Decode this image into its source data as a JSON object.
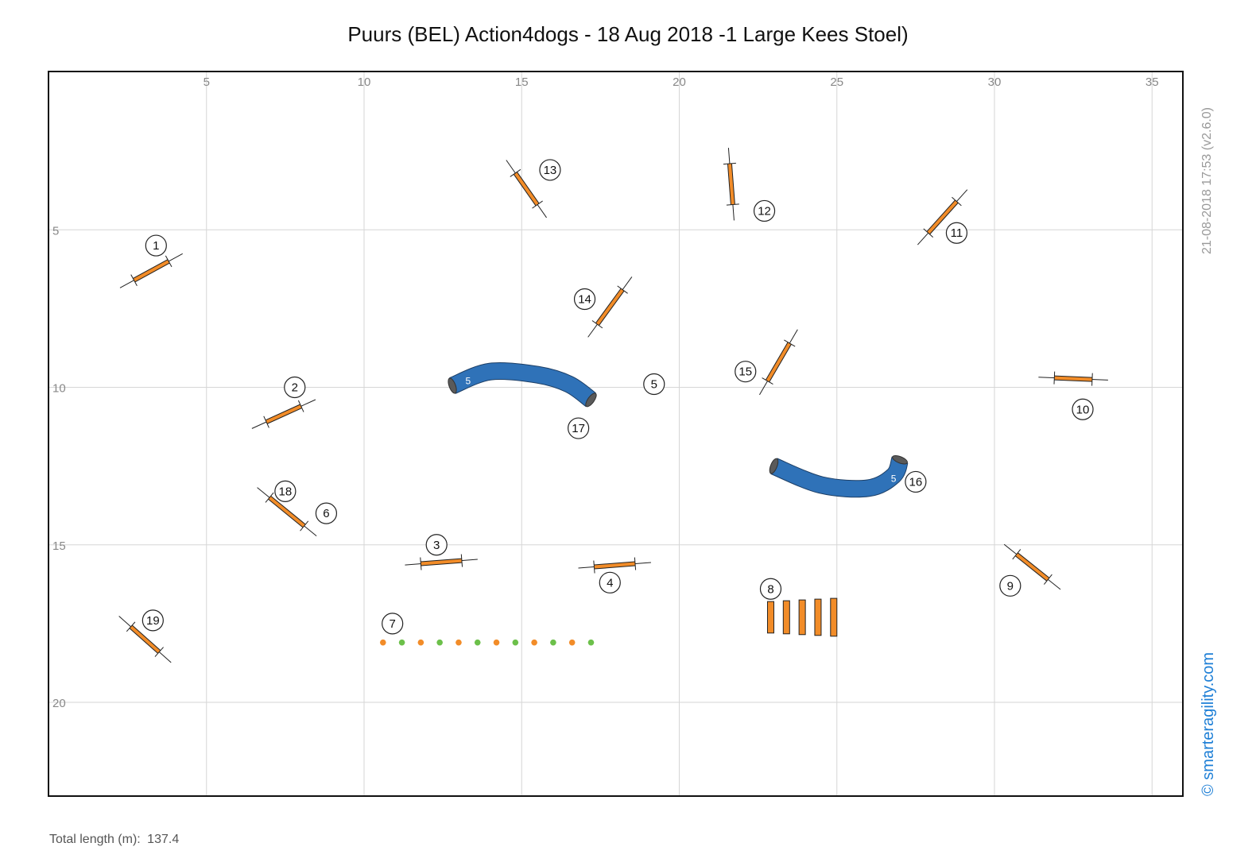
{
  "title": "Puurs (BEL) Action4dogs - 18 Aug 2018 -1 Large Kees Stoel)",
  "footer": {
    "label": "Total length (m):",
    "value": "137.4"
  },
  "timestamp": "21-08-2018 17:53   (v2.6.0)",
  "copyright": "© smarteragility.com",
  "field": {
    "width_m": 36,
    "height_m": 23
  },
  "axes": {
    "x_ticks": [
      "5",
      "10",
      "15",
      "20",
      "25",
      "30",
      "35"
    ],
    "y_ticks": [
      "5",
      "10",
      "15",
      "20"
    ]
  },
  "colors": {
    "jump_bar": "#f28c28",
    "tunnel": "#2f72b8",
    "tunnel_end": "#5a5a5a",
    "weave_orange": "#f28c28",
    "weave_green": "#6cc04a",
    "grid": "#d6d6d6",
    "copyright": "#1e7fd6"
  },
  "jumps": [
    {
      "x1": 2.7,
      "y1": 6.6,
      "x2": 3.8,
      "y2": 6.0
    },
    {
      "x1": 6.9,
      "y1": 11.1,
      "x2": 8.0,
      "y2": 10.6
    },
    {
      "x1": 11.8,
      "y1": 15.6,
      "x2": 13.1,
      "y2": 15.5
    },
    {
      "x1": 17.3,
      "y1": 15.7,
      "x2": 18.6,
      "y2": 15.6
    },
    {
      "x1": 7.0,
      "y1": 13.5,
      "x2": 8.1,
      "y2": 14.4
    },
    {
      "x1": 30.7,
      "y1": 15.3,
      "x2": 31.7,
      "y2": 16.1
    },
    {
      "x1": 31.9,
      "y1": 9.7,
      "x2": 33.1,
      "y2": 9.75
    },
    {
      "x1": 27.9,
      "y1": 5.1,
      "x2": 28.8,
      "y2": 4.1
    },
    {
      "x1": 21.6,
      "y1": 2.9,
      "x2": 21.7,
      "y2": 4.2
    },
    {
      "x1": 14.8,
      "y1": 3.2,
      "x2": 15.5,
      "y2": 4.2
    },
    {
      "x1": 17.4,
      "y1": 8.0,
      "x2": 18.2,
      "y2": 6.9
    },
    {
      "x1": 22.8,
      "y1": 9.8,
      "x2": 23.5,
      "y2": 8.6
    },
    {
      "x1": 2.6,
      "y1": 17.6,
      "x2": 3.5,
      "y2": 18.4
    }
  ],
  "tunnels": [
    {
      "label": "5",
      "path": [
        [
          12.8,
          9.95
        ],
        [
          14.0,
          9.5
        ],
        [
          15.5,
          9.6
        ],
        [
          16.5,
          9.9
        ],
        [
          17.2,
          10.4
        ]
      ],
      "label_at": [
        13.3,
        9.8
      ]
    },
    {
      "label": "5",
      "path": [
        [
          23.0,
          12.5
        ],
        [
          24.5,
          13.1
        ],
        [
          26.0,
          13.2
        ],
        [
          26.8,
          12.8
        ],
        [
          27.0,
          12.3
        ]
      ],
      "label_at": [
        26.8,
        12.9
      ]
    }
  ],
  "weave": {
    "x_start": 10.6,
    "x_end": 17.2,
    "y": 18.1,
    "pattern": [
      "orange",
      "green",
      "orange",
      "green",
      "orange",
      "green",
      "orange",
      "green",
      "orange",
      "green",
      "orange",
      "green"
    ]
  },
  "long_jump": {
    "x_start": 22.9,
    "x_end": 24.9,
    "y_top": 16.8,
    "y_bottom": 17.8,
    "boards": 5
  },
  "numbers": [
    {
      "n": "1",
      "x": 3.4,
      "y": 5.5
    },
    {
      "n": "2",
      "x": 7.8,
      "y": 10.0
    },
    {
      "n": "3",
      "x": 12.3,
      "y": 15.0
    },
    {
      "n": "4",
      "x": 17.8,
      "y": 16.2
    },
    {
      "n": "5",
      "x": 19.2,
      "y": 9.9
    },
    {
      "n": "6",
      "x": 8.8,
      "y": 14.0
    },
    {
      "n": "7",
      "x": 10.9,
      "y": 17.5
    },
    {
      "n": "8",
      "x": 22.9,
      "y": 16.4
    },
    {
      "n": "9",
      "x": 30.5,
      "y": 16.3
    },
    {
      "n": "10",
      "x": 32.8,
      "y": 10.7
    },
    {
      "n": "11",
      "x": 28.8,
      "y": 5.1
    },
    {
      "n": "12",
      "x": 22.7,
      "y": 4.4
    },
    {
      "n": "13",
      "x": 15.9,
      "y": 3.1
    },
    {
      "n": "14",
      "x": 17.0,
      "y": 7.2
    },
    {
      "n": "15",
      "x": 22.1,
      "y": 9.5
    },
    {
      "n": "16",
      "x": 27.5,
      "y": 13.0
    },
    {
      "n": "17",
      "x": 16.8,
      "y": 11.3
    },
    {
      "n": "18",
      "x": 7.5,
      "y": 13.3
    },
    {
      "n": "19",
      "x": 3.3,
      "y": 17.4
    }
  ]
}
